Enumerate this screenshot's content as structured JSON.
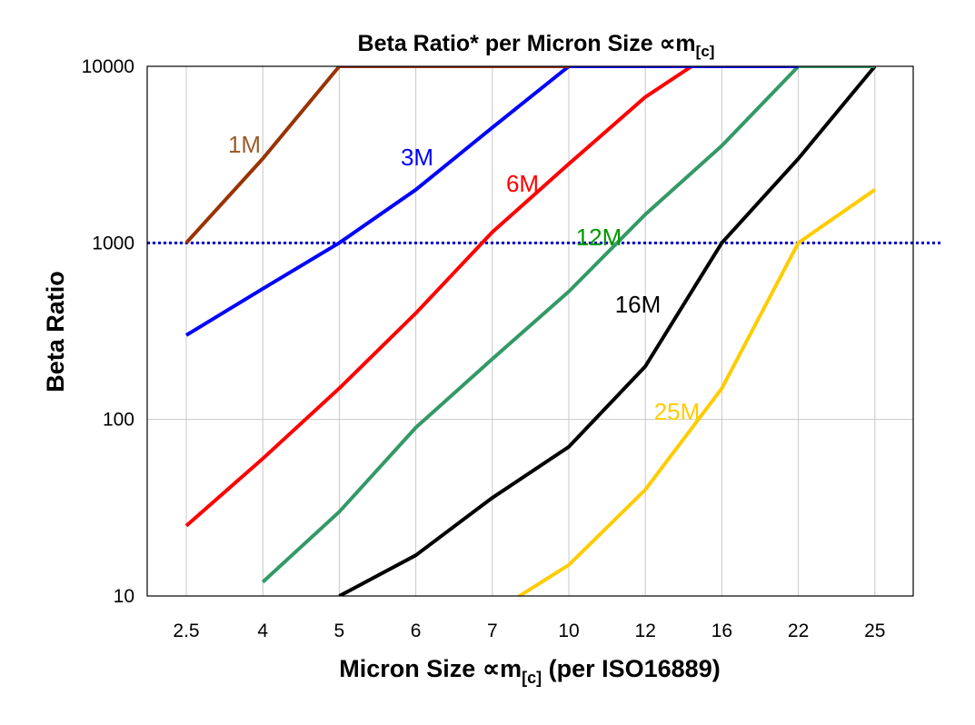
{
  "chart_data": {
    "type": "line",
    "title": "Beta Ratio* per Micron Size ",
    "title_symbol": "∝m",
    "title_subscript": "[c]",
    "xlabel": "Micron Size ",
    "xlabel_symbol": "∝m",
    "xlabel_subscript": "[c]",
    "xlabel_suffix": " (per ISO16889)",
    "ylabel": "Beta Ratio",
    "y_scale": "log",
    "ylim": [
      10,
      10000
    ],
    "yticks": [
      "10",
      "100",
      "1000",
      "10000"
    ],
    "categories": [
      "2.5",
      "4",
      "5",
      "6",
      "7",
      "10",
      "12",
      "16",
      "22",
      "25"
    ],
    "grid": true,
    "reference_line": {
      "value": 1000,
      "style": "dotted",
      "color": "#0000CC"
    },
    "series": [
      {
        "name": "1M",
        "color": "#993300",
        "label_color": "#9C5B2E",
        "values": [
          1000,
          3000,
          10000,
          10000,
          10000,
          10000,
          null,
          null,
          null,
          null
        ]
      },
      {
        "name": "3M",
        "color": "#0000FF",
        "label_color": "#0000FF",
        "values": [
          300,
          550,
          1000,
          2000,
          4500,
          10000,
          10000,
          10000,
          10000,
          null
        ]
      },
      {
        "name": "6M",
        "color": "#FF0000",
        "label_color": "#FF0000",
        "values": [
          25,
          60,
          150,
          400,
          1150,
          2800,
          6700,
          13000,
          null,
          null
        ]
      },
      {
        "name": "12M",
        "color": "#339966",
        "label_color": "#009900",
        "values": [
          null,
          12,
          30,
          90,
          220,
          530,
          1450,
          3550,
          10000,
          10000
        ]
      },
      {
        "name": "16M",
        "color": "#000000",
        "label_color": "#000000",
        "values": [
          null,
          null,
          10,
          17,
          36,
          70,
          200,
          1000,
          3000,
          10000
        ]
      },
      {
        "name": "25M",
        "color": "#FFCC00",
        "label_color": "#FFCC00",
        "values": [
          null,
          null,
          null,
          null,
          8,
          15,
          40,
          150,
          1000,
          2000
        ]
      }
    ]
  }
}
